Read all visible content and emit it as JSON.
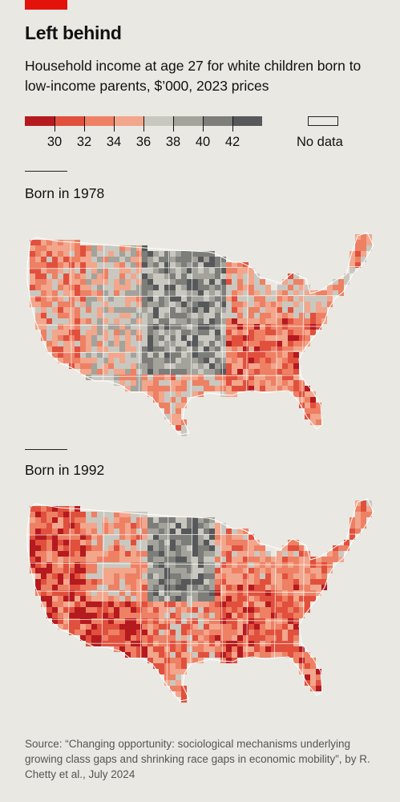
{
  "header": {
    "title": "Left behind",
    "subtitle": "Household income at age 27 for white children born to low-income parents, $’000, 2023 prices"
  },
  "legend": {
    "ticks": [
      "30",
      "32",
      "34",
      "36",
      "38",
      "40",
      "42"
    ],
    "colors": [
      "#b51a1f",
      "#e1503d",
      "#ee8064",
      "#f2a68c",
      "#c9c8c0",
      "#a3a39c",
      "#7d7d79",
      "#57585a"
    ],
    "no_data_label": "No data"
  },
  "maps": [
    {
      "title": "Born in 1978"
    },
    {
      "title": "Born in 1992"
    }
  ],
  "source": "Source: “Changing opportunity: sociological mechanisms underlying growing class gaps and shrinking race gaps in economic mobility”, by R. Chetty et al., July 2024"
}
